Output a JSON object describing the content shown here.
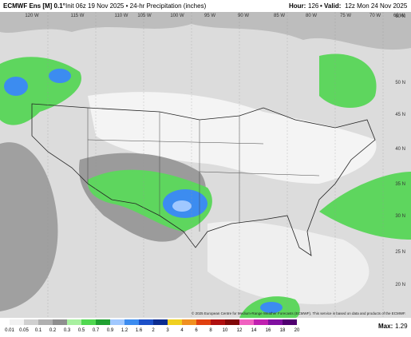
{
  "header": {
    "model": "ECMWF Ens [M] 0.1°",
    "init": "Init 06z 19 Nov 2025 • 24-hr Precipitation (inches)",
    "hour_label": "Hour:",
    "hour": "126",
    "valid_label": "• Valid:",
    "valid": "12z Mon 24 Nov 2025"
  },
  "map": {
    "longitudes": [
      "120 W",
      "115 W",
      "110 W",
      "105 W",
      "100 W",
      "95 W",
      "90 W",
      "85 W",
      "80 W",
      "75 W",
      "70 W",
      "65 W"
    ],
    "latitudes": [
      "60 N",
      "50 N",
      "45 N",
      "40 N",
      "35 N",
      "30 N",
      "25 N",
      "20 N"
    ],
    "copyright": "© 2025 European Centre for Medium-Range Weather Forecasts (ECMWF). This service is based on data and products of the ECMWF."
  },
  "colorbar": {
    "labels": [
      "0.01",
      "0.05",
      "0.1",
      "0.2",
      "0.3",
      "0.5",
      "0.7",
      "0.9",
      "1.2",
      "1.6",
      "2",
      "3",
      "4",
      "6",
      "8",
      "10",
      "12",
      "14",
      "16",
      "18",
      "20"
    ],
    "colors": [
      "#f2f2f2",
      "#d0d0d0",
      "#b0b0b0",
      "#8f8f8f",
      "#a8f0a0",
      "#50d850",
      "#20a030",
      "#a0c8ff",
      "#3c8cf0",
      "#1c50c8",
      "#0c2c90",
      "#f0d020",
      "#f09020",
      "#e04010",
      "#b01010",
      "#800808",
      "#f060c0",
      "#c020b0",
      "#8010a0",
      "#500070"
    ]
  },
  "max": {
    "label": "Max:",
    "value": "1.29"
  }
}
